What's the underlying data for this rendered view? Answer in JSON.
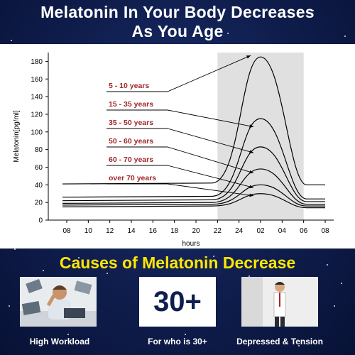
{
  "title": {
    "line1": "Melatonin In Your Body Decreases",
    "line2": "As You Age"
  },
  "chart_data": {
    "type": "line",
    "xlabel": "hours",
    "ylabel": "Melatonin[pg/ml]",
    "ylim": [
      0,
      190
    ],
    "yticks": [
      0,
      20,
      40,
      60,
      80,
      100,
      120,
      140,
      160,
      180
    ],
    "categories": [
      "08",
      "10",
      "12",
      "14",
      "16",
      "18",
      "20",
      "22",
      "24",
      "02",
      "04",
      "06",
      "08"
    ],
    "grid": false,
    "highlight_range": [
      "22",
      "06"
    ],
    "highlight_color": "#e0e0e0",
    "peak_at": "02",
    "series": [
      {
        "name": "5 - 10 years",
        "baseline_start": 41,
        "baseline_end": 40,
        "peak": 185
      },
      {
        "name": "15 - 35 years",
        "baseline_start": 26,
        "baseline_end": 24,
        "peak": 115
      },
      {
        "name": "35 - 50 years",
        "baseline_start": 22,
        "baseline_end": 21,
        "peak": 83
      },
      {
        "name": "50 - 60 years",
        "baseline_start": 19,
        "baseline_end": 18,
        "peak": 58
      },
      {
        "name": "60 - 70 years",
        "baseline_start": 17,
        "baseline_end": 16,
        "peak": 40
      },
      {
        "name": "over 70 years",
        "baseline_start": 15,
        "baseline_end": 14,
        "peak": 30
      }
    ],
    "label_color": "#a3262a"
  },
  "causes": {
    "title": "Causes of Melatonin Decrease",
    "cards": [
      {
        "label": "High Workload"
      },
      {
        "label": "For who is 30+",
        "number": "30+"
      },
      {
        "label": "Depressed & Tension"
      }
    ]
  }
}
